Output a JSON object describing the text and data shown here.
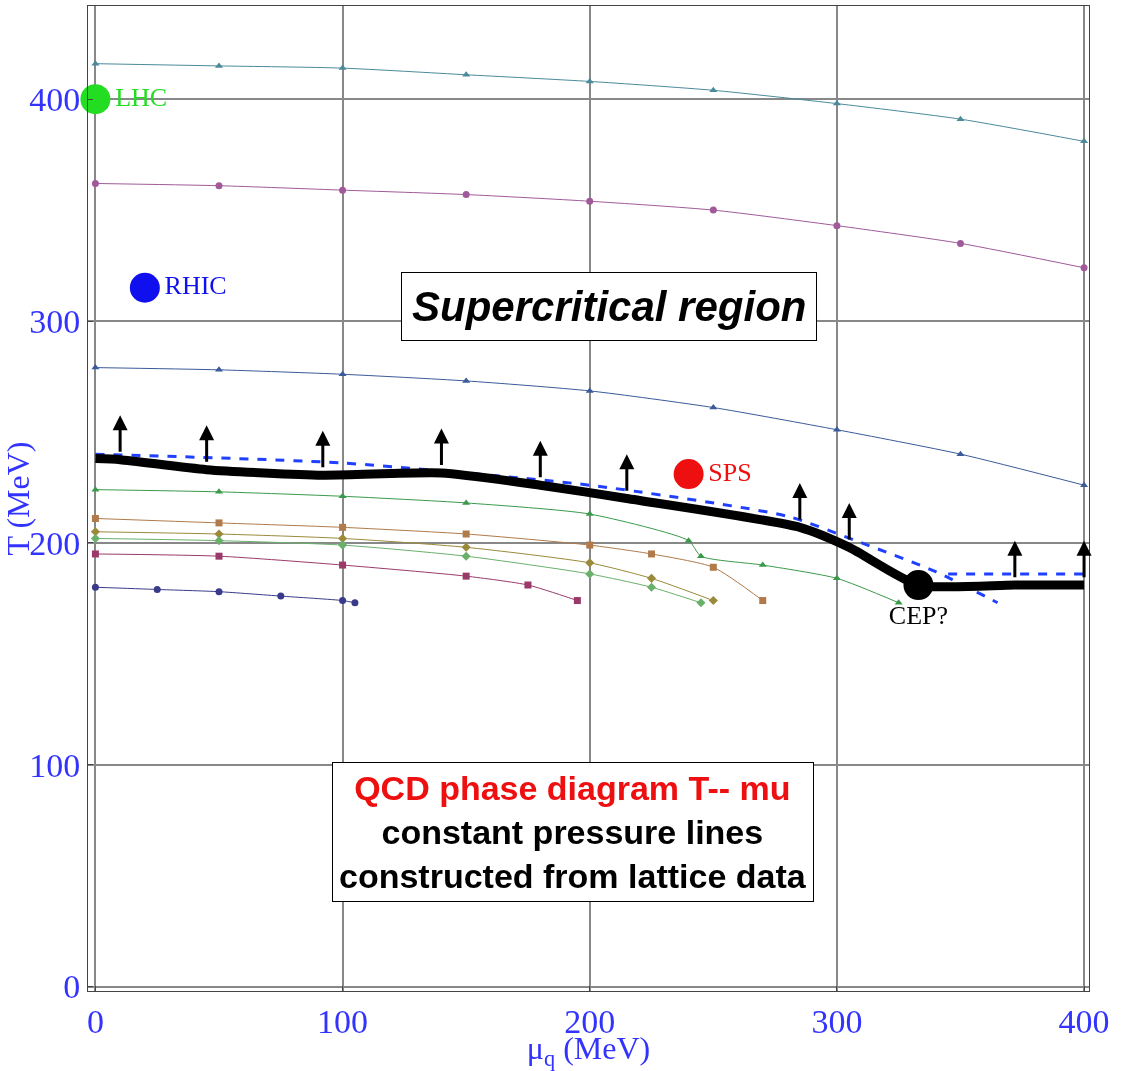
{
  "chart_data": {
    "type": "line",
    "xlabel": "μ$_{q}$ (MeV)",
    "ylabel": "T (MeV)",
    "xlim": [
      -3,
      402
    ],
    "ylim": [
      -2,
      442
    ],
    "xticks": [
      0,
      100,
      200,
      300,
      400
    ],
    "yticks": [
      0,
      100,
      200,
      300,
      400
    ],
    "grid": true,
    "legend": false,
    "series": [
      {
        "color": "#4a8a9a",
        "marker": "triangle",
        "x": [
          0,
          50,
          100,
          150,
          200,
          250,
          300,
          350,
          400
        ],
        "values": [
          416,
          415,
          414,
          411,
          408,
          404,
          398,
          391,
          381
        ]
      },
      {
        "color": "#a05a9a",
        "marker": "circle",
        "x": [
          0,
          50,
          100,
          150,
          200,
          250,
          300,
          350,
          400
        ],
        "values": [
          362,
          361,
          359,
          357,
          354,
          350,
          343,
          335,
          324
        ]
      },
      {
        "color": "#3a5a9a",
        "marker": "triangle",
        "x": [
          0,
          50,
          100,
          150,
          200,
          250,
          300,
          350,
          400
        ],
        "values": [
          279,
          278,
          276,
          273,
          268.5,
          261,
          251,
          240,
          226
        ]
      },
      {
        "color": "#3a9a4a",
        "marker": "triangle",
        "x": [
          0,
          50,
          100,
          150,
          200,
          240,
          245,
          270,
          300,
          325
        ],
        "values": [
          224,
          223,
          221,
          218,
          213,
          201,
          194,
          190,
          184,
          173
        ]
      },
      {
        "color": "#b07a4a",
        "marker": "square",
        "x": [
          0,
          50,
          100,
          150,
          200,
          225,
          250,
          270
        ],
        "values": [
          211,
          209,
          207,
          204,
          199,
          195,
          189,
          174
        ]
      },
      {
        "color": "#9a8a3a",
        "marker": "diamond",
        "x": [
          0,
          50,
          100,
          150,
          200,
          225,
          250
        ],
        "values": [
          205,
          204,
          202,
          198,
          191,
          184,
          174
        ]
      },
      {
        "color": "#6ab06a",
        "marker": "diamond",
        "x": [
          0,
          50,
          100,
          150,
          200,
          225,
          245
        ],
        "values": [
          202,
          201,
          199,
          194,
          186,
          180,
          173
        ]
      },
      {
        "color": "#9a3a6a",
        "marker": "square",
        "x": [
          0,
          50,
          100,
          150,
          175,
          195
        ],
        "values": [
          195,
          194,
          190,
          185,
          181,
          174
        ]
      },
      {
        "color": "#3a3a8a",
        "marker": "circle",
        "x": [
          0,
          25,
          50,
          75,
          100,
          105
        ],
        "values": [
          180,
          179,
          178,
          176,
          174,
          173
        ]
      },
      {
        "color": "#2040ff",
        "line_style": "dashed",
        "marker": "none",
        "x": [
          0,
          100,
          200,
          280,
          310,
          340,
          365
        ],
        "values": [
          240,
          236,
          226,
          212,
          200,
          187,
          173
        ]
      },
      {
        "color": "#2040ff",
        "line_style": "dashed",
        "marker": "none",
        "x": [
          345,
          400
        ],
        "values": [
          186,
          186
        ]
      },
      {
        "color": "#000000",
        "marker": "none",
        "x": [
          0,
          10,
          45,
          92,
          140,
          180,
          215,
          285,
          305,
          333,
          372,
          400
        ],
        "values": [
          238,
          237.5,
          233,
          230.5,
          231.5,
          226,
          220,
          207,
          198,
          181,
          181,
          181
        ]
      },
      {
        "type": "scatter",
        "name": "LHC",
        "color": "#22dd22",
        "marker": "circle",
        "x": [
          0
        ],
        "values": [
          400
        ]
      },
      {
        "type": "scatter",
        "name": "RHIC",
        "color": "#1010ee",
        "marker": "circle",
        "x": [
          20
        ],
        "values": [
          315
        ]
      },
      {
        "type": "scatter",
        "name": "SPS",
        "color": "#ee1010",
        "marker": "circle",
        "x": [
          240
        ],
        "values": [
          231
        ]
      },
      {
        "type": "scatter",
        "name": "CEP?",
        "color": "#000000",
        "marker": "circle",
        "x": [
          333
        ],
        "values": [
          181
        ]
      }
    ],
    "annotations": [
      "Supercritical region",
      "QCD phase diagram T-- mu",
      "constant pressure lines",
      "constructed from lattice data"
    ]
  }
}
